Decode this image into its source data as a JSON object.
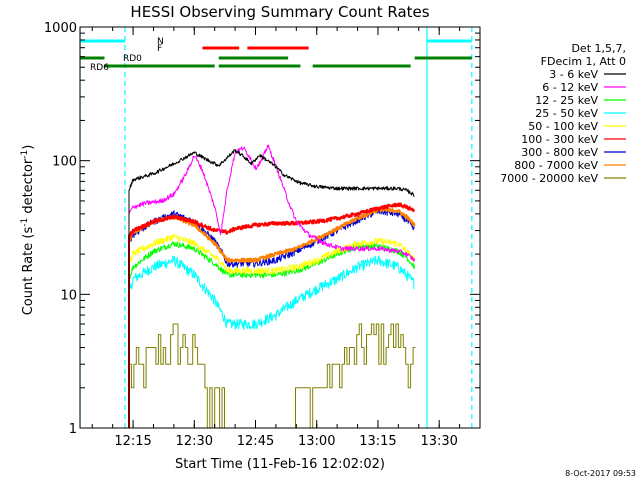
{
  "chart_data": {
    "type": "line",
    "title": "HESSI Observing Summary Count Rates",
    "xlabel": "Start Time (11-Feb-16 12:02:02)",
    "ylabel_main": "Count Rate (s",
    "ylabel_sup1": "-1",
    "ylabel_mid": " detector",
    "ylabel_sup2": "-1",
    "ylabel_end": ")",
    "ylabel": "Count Rate (s-1 detector-1)",
    "yscale": "log",
    "xlim": [
      "12:02",
      "13:40"
    ],
    "ylim": [
      1,
      1000
    ],
    "x_ticks": [
      "12:15",
      "12:30",
      "12:45",
      "13:00",
      "13:15",
      "13:30"
    ],
    "y_ticks": [
      "1",
      "10",
      "100",
      "1000"
    ],
    "grid": false,
    "legend_placement": "right",
    "legend_header": [
      "Det 1,5,7,",
      "FDecim 1, Att 0"
    ],
    "timestamp": "8-Oct-2017 09:53",
    "x_units": "minutes since 12:00",
    "series": [
      {
        "name": "3 - 6 keV",
        "color": "#000000",
        "noise": 0.03,
        "x": [
          14,
          15,
          20,
          25,
          30,
          33,
          36,
          38,
          40,
          42,
          44,
          46,
          48,
          50,
          52,
          56,
          60,
          65,
          70,
          75,
          80,
          82,
          84
        ],
        "y": [
          60,
          72,
          80,
          95,
          115,
          102,
          92,
          105,
          120,
          108,
          95,
          110,
          100,
          90,
          78,
          68,
          64,
          62,
          62,
          62,
          62,
          60,
          55
        ]
      },
      {
        "name": "6 - 12 keV",
        "color": "#ff00ff",
        "noise": 0.04,
        "x": [
          14,
          15,
          18,
          22,
          25,
          28,
          30,
          32,
          35,
          36.5,
          38,
          40,
          42,
          43.5,
          45,
          46.5,
          48,
          49,
          51,
          53,
          55,
          58,
          62,
          66,
          70,
          75,
          80,
          82,
          84
        ],
        "y": [
          40,
          45,
          48,
          50,
          56,
          80,
          110,
          85,
          45,
          28,
          60,
          115,
          125,
          108,
          88,
          100,
          130,
          110,
          75,
          50,
          35,
          28,
          24,
          22,
          22,
          22,
          21,
          20,
          18
        ]
      },
      {
        "name": "12 - 25 keV",
        "color": "#00ff00",
        "noise": 0.05,
        "x": [
          14,
          15,
          20,
          25,
          30,
          35,
          37,
          38,
          40,
          45,
          50,
          55,
          60,
          65,
          70,
          75,
          80,
          82,
          84
        ],
        "y": [
          13,
          16,
          21,
          24,
          22,
          17,
          15,
          14,
          14,
          14,
          14,
          15,
          17,
          20,
          23,
          23,
          21,
          19,
          16
        ]
      },
      {
        "name": "25 - 50 keV",
        "color": "#00ffff",
        "noise": 0.09,
        "x": [
          14,
          15,
          20,
          25,
          30,
          35,
          37,
          38,
          40,
          45,
          50,
          55,
          60,
          65,
          70,
          75,
          80,
          82,
          84
        ],
        "y": [
          10,
          13,
          16,
          18,
          14,
          9,
          7,
          6,
          6,
          6,
          7,
          9,
          11,
          13,
          16,
          18,
          16,
          14,
          12
        ]
      },
      {
        "name": "50 - 100 keV",
        "color": "#ffff00",
        "noise": 0.06,
        "x": [
          14,
          15,
          20,
          25,
          30,
          35,
          37,
          38,
          40,
          45,
          50,
          55,
          60,
          65,
          70,
          75,
          80,
          82,
          84
        ],
        "y": [
          17,
          20,
          24,
          27,
          24,
          19,
          17,
          15,
          15,
          15,
          15,
          16,
          18,
          21,
          24,
          25,
          24,
          21,
          18
        ]
      },
      {
        "name": "100 - 300 keV",
        "color": "#ff0000",
        "noise": 0.03,
        "x": [
          14,
          15,
          20,
          25,
          30,
          35,
          37,
          38,
          40,
          45,
          50,
          55,
          60,
          65,
          70,
          75,
          80,
          82,
          84
        ],
        "y": [
          27,
          30,
          35,
          38,
          35,
          30,
          30,
          29,
          31,
          33,
          34,
          34,
          35,
          37,
          40,
          44,
          47,
          45,
          42
        ]
      },
      {
        "name": "300 - 800 keV",
        "color": "#0000cc",
        "noise": 0.06,
        "x": [
          14,
          15,
          20,
          25,
          30,
          35,
          37,
          38,
          40,
          45,
          50,
          55,
          60,
          65,
          70,
          75,
          80,
          82,
          84
        ],
        "y": [
          25,
          28,
          35,
          40,
          35,
          25,
          20,
          17,
          17,
          17,
          18,
          21,
          25,
          30,
          36,
          42,
          40,
          36,
          30
        ]
      },
      {
        "name": "800 - 7000 keV",
        "color": "#ff8000",
        "noise": 0.03,
        "x": [
          14,
          15,
          20,
          25,
          30,
          35,
          37,
          38,
          40,
          45,
          50,
          55,
          60,
          65,
          70,
          75,
          80,
          82,
          84
        ],
        "y": [
          25,
          29,
          35,
          38,
          33,
          24,
          20,
          18,
          18,
          18,
          20,
          22,
          26,
          31,
          37,
          43,
          42,
          38,
          33
        ]
      },
      {
        "name": "7000 - 20000 keV",
        "color": "#808000",
        "noise": 0.18,
        "steps": true,
        "x": [
          14,
          15,
          20,
          25,
          30,
          33,
          35,
          38,
          40,
          43,
          46,
          50,
          53,
          56,
          60,
          65,
          70,
          75,
          80,
          82,
          84
        ],
        "y": [
          2.5,
          2.8,
          3.5,
          4.5,
          3.5,
          2.0,
          1.5,
          1.2,
          1.1,
          1.0,
          1.0,
          1.1,
          1.3,
          1.6,
          2.0,
          2.8,
          4.0,
          5.0,
          4.5,
          3.5,
          3.0
        ]
      }
    ],
    "flags": {
      "N": {
        "label": "N",
        "color": "#00ffff",
        "segments": [
          [
            2,
            13
          ],
          [
            87,
            98
          ]
        ]
      },
      "F": {
        "label": "F",
        "color": "#ff0000",
        "segments": [
          [
            32,
            41
          ],
          [
            43,
            58
          ]
        ]
      },
      "RD0": {
        "label": "RD0",
        "color": "#008000",
        "segments": [
          [
            2,
            8
          ],
          [
            36,
            53
          ],
          [
            84,
            98
          ]
        ]
      },
      "RD6": {
        "label": "RD6",
        "color": "#008000",
        "segments": [
          [
            8,
            35
          ],
          [
            36,
            56
          ],
          [
            59,
            83
          ]
        ]
      }
    },
    "night_boundaries": [
      {
        "minute": 2,
        "style": "solid"
      },
      {
        "minute": 13,
        "style": "dashed"
      },
      {
        "minute": 87,
        "style": "solid"
      },
      {
        "minute": 98,
        "style": "dashed"
      }
    ]
  }
}
